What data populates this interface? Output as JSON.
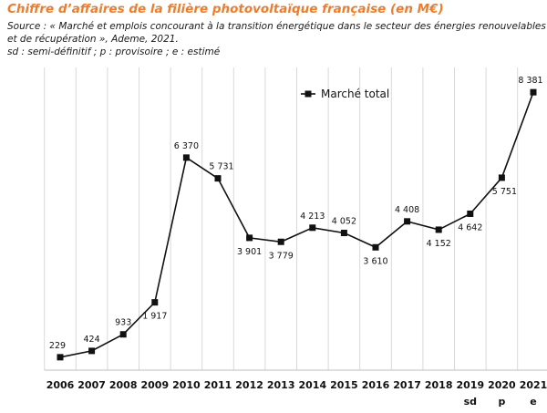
{
  "header": {
    "title": "Chiffre d’affaires de la filière photovoltaïque française (en M€)",
    "source_lines": [
      "Source : « Marché et emplois concourant à la transition énergétique dans le secteur des énergies renouvelables",
      "et de récupération », Ademe, 2021.",
      "sd : semi-définitif ; p : provisoire ; e : estimé"
    ]
  },
  "chart_data": {
    "type": "line",
    "title": "Chiffre d’affaires de la filière photovoltaïque française (en M€)",
    "xlabel": "",
    "ylabel": "",
    "categories": [
      "2006",
      "2007",
      "2008",
      "2009",
      "2010",
      "2011",
      "2012",
      "2013",
      "2014",
      "2015",
      "2016",
      "2017",
      "2018",
      "2019",
      "2020",
      "2021"
    ],
    "subcategories": [
      "",
      "",
      "",
      "",
      "",
      "",
      "",
      "",
      "",
      "",
      "",
      "",
      "",
      "sd",
      "p",
      "e"
    ],
    "series": [
      {
        "name": "Marché total",
        "values": [
          229,
          424,
          933,
          1917,
          6370,
          5731,
          3901,
          3779,
          4213,
          4052,
          3610,
          4408,
          4152,
          4642,
          5751,
          8381
        ],
        "labels": [
          "229",
          "424",
          "933",
          "1 917",
          "6 370",
          "5 731",
          "3 901",
          "3 779",
          "4 213",
          "4 052",
          "3 610",
          "4 408",
          "4 152",
          "4 642",
          "5 751",
          "8 381"
        ],
        "color": "#111111",
        "marker": "square"
      }
    ],
    "ylim": [
      0,
      8750
    ],
    "grid": "vertical",
    "legend": "top-center",
    "colors": {
      "line": "#111111",
      "grid": "#d9d9d9",
      "title": "#ee7d2b"
    }
  }
}
